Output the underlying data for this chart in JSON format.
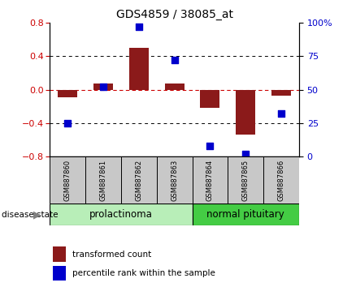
{
  "title": "GDS4859 / 38085_at",
  "samples": [
    "GSM887860",
    "GSM887861",
    "GSM887862",
    "GSM887863",
    "GSM887864",
    "GSM887865",
    "GSM887866"
  ],
  "transformed_count": [
    -0.09,
    0.07,
    0.5,
    0.07,
    -0.22,
    -0.54,
    -0.07
  ],
  "percentile_rank_raw": [
    25,
    52,
    97,
    72,
    8,
    2,
    32
  ],
  "ylim_left": [
    -0.8,
    0.8
  ],
  "ylim_right": [
    0,
    100
  ],
  "yticks_left": [
    -0.8,
    -0.4,
    0.0,
    0.4,
    0.8
  ],
  "yticks_right": [
    0,
    25,
    50,
    75,
    100
  ],
  "ytick_labels_right": [
    "0",
    "25",
    "50",
    "75",
    "100%"
  ],
  "bar_color": "#8B1A1A",
  "dot_color": "#0000CC",
  "grid_color": "#000000",
  "zero_line_color": "#CC0000",
  "group_prolactinoma_color": "#B8EEB8",
  "group_normal_color": "#44CC44",
  "disease_state_label": "disease state",
  "legend_items": [
    {
      "label": "transformed count",
      "color": "#8B1A1A"
    },
    {
      "label": "percentile rank within the sample",
      "color": "#0000CC"
    }
  ],
  "bar_width": 0.55,
  "background_color": "#ffffff",
  "tick_label_color_left": "#CC0000",
  "tick_label_color_right": "#0000CC",
  "sample_box_color": "#C8C8C8",
  "sample_box_dark": "#B0B0B0"
}
